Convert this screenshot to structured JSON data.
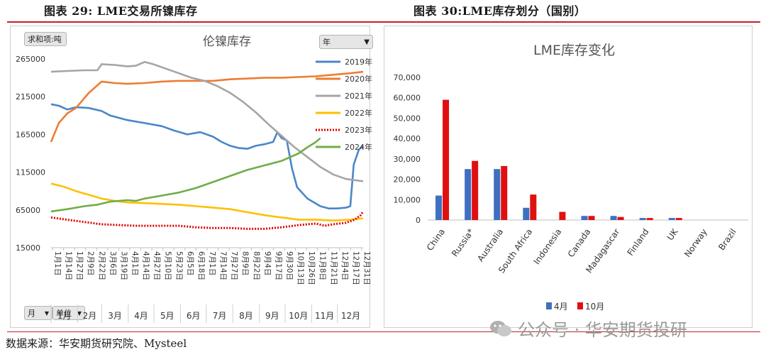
{
  "figures": {
    "left_title": "图表 29: LME交易所镍库存",
    "right_title": "图表 30:LME库存划分（国别）",
    "source": "数据来源：华安期货研究院、Mysteel",
    "watermark": "公众号 · 华安期货投研"
  },
  "controls": {
    "sum_label": "求和项:吨",
    "year_filter": "年",
    "month_filter": "月",
    "unit_filter": "单位"
  },
  "colors": {
    "y2019": "#4a86c8",
    "y2020": "#ed7d31",
    "y2021": "#a5a5a5",
    "y2022": "#ffc000",
    "y2023": "#e00000",
    "y2024": "#70ad47",
    "bar_apr": "#3f6fbf",
    "bar_oct": "#e01010"
  },
  "chart_data": [
    {
      "type": "line",
      "title": "伦镍库存",
      "ylim": [
        15000,
        265000
      ],
      "yticks": [
        15000,
        65000,
        115000,
        165000,
        215000,
        265000
      ],
      "date_labels": [
        "1月1日",
        "1月14日",
        "1月27日",
        "2月9日",
        "2月22日",
        "3月6日",
        "3月19日",
        "4月1日",
        "4月14日",
        "4月27日",
        "5月10日",
        "5月23日",
        "6月5日",
        "6月18日",
        "7月1日",
        "7月14日",
        "7月27日",
        "8月9日",
        "8月22日",
        "9月4日",
        "9月17日",
        "9月30日",
        "10月13日",
        "10月26日",
        "11月8日",
        "11月21日",
        "12月4日",
        "12月17日",
        "12月31日"
      ],
      "months": [
        "1月",
        "2月",
        "3月",
        "4月",
        "5月",
        "6月",
        "7月",
        "8月",
        "9月",
        "10月",
        "11月",
        "12月"
      ],
      "x_is_day_of_year": true,
      "series": [
        {
          "name": "2019年",
          "color": "#4a86c8",
          "dash": false,
          "points": [
            [
              1,
              205000
            ],
            [
              10,
              203000
            ],
            [
              20,
              198000
            ],
            [
              30,
              201000
            ],
            [
              45,
              200000
            ],
            [
              60,
              196000
            ],
            [
              70,
              190000
            ],
            [
              90,
              184000
            ],
            [
              110,
              180000
            ],
            [
              130,
              176000
            ],
            [
              145,
              170000
            ],
            [
              160,
              165000
            ],
            [
              175,
              168000
            ],
            [
              190,
              162000
            ],
            [
              200,
              155000
            ],
            [
              210,
              150000
            ],
            [
              220,
              147000
            ],
            [
              230,
              146000
            ],
            [
              240,
              150000
            ],
            [
              250,
              152000
            ],
            [
              260,
              155000
            ],
            [
              265,
              168000
            ],
            [
              270,
              160000
            ],
            [
              276,
              157000
            ],
            [
              282,
              120000
            ],
            [
              288,
              95000
            ],
            [
              300,
              80000
            ],
            [
              315,
              70000
            ],
            [
              325,
              67000
            ],
            [
              335,
              67000
            ],
            [
              345,
              68000
            ],
            [
              350,
              70000
            ],
            [
              354,
              125000
            ],
            [
              360,
              145000
            ],
            [
              365,
              150000
            ]
          ]
        },
        {
          "name": "2020年",
          "color": "#ed7d31",
          "dash": false,
          "points": [
            [
              1,
              155000
            ],
            [
              10,
              180000
            ],
            [
              20,
              193000
            ],
            [
              30,
              200000
            ],
            [
              45,
              220000
            ],
            [
              60,
              235000
            ],
            [
              75,
              233000
            ],
            [
              90,
              232000
            ],
            [
              110,
              233000
            ],
            [
              130,
              235000
            ],
            [
              150,
              236000
            ],
            [
              170,
              236000
            ],
            [
              190,
              236000
            ],
            [
              210,
              238000
            ],
            [
              230,
              239000
            ],
            [
              250,
              240000
            ],
            [
              270,
              240000
            ],
            [
              290,
              241000
            ],
            [
              310,
              242000
            ],
            [
              330,
              244000
            ],
            [
              350,
              246000
            ],
            [
              365,
              248000
            ]
          ]
        },
        {
          "name": "2021年",
          "color": "#a5a5a5",
          "dash": false,
          "points": [
            [
              1,
              248000
            ],
            [
              20,
              249000
            ],
            [
              40,
              250000
            ],
            [
              55,
              250000
            ],
            [
              60,
              258000
            ],
            [
              75,
              257000
            ],
            [
              90,
              255000
            ],
            [
              100,
              256000
            ],
            [
              110,
              261000
            ],
            [
              120,
              258000
            ],
            [
              135,
              252000
            ],
            [
              150,
              246000
            ],
            [
              165,
              240000
            ],
            [
              180,
              236000
            ],
            [
              195,
              229000
            ],
            [
              210,
              220000
            ],
            [
              225,
              208000
            ],
            [
              240,
              194000
            ],
            [
              255,
              178000
            ],
            [
              270,
              163000
            ],
            [
              285,
              148000
            ],
            [
              300,
              135000
            ],
            [
              315,
              122000
            ],
            [
              330,
              112000
            ],
            [
              345,
              106000
            ],
            [
              365,
              103000
            ]
          ]
        },
        {
          "name": "2022年",
          "color": "#ffc000",
          "dash": false,
          "points": [
            [
              1,
              100000
            ],
            [
              15,
              96000
            ],
            [
              30,
              90000
            ],
            [
              45,
              85000
            ],
            [
              60,
              80000
            ],
            [
              75,
              77000
            ],
            [
              90,
              75000
            ],
            [
              110,
              74000
            ],
            [
              130,
              73000
            ],
            [
              150,
              72000
            ],
            [
              170,
              70000
            ],
            [
              190,
              68000
            ],
            [
              210,
              66000
            ],
            [
              230,
              62000
            ],
            [
              250,
              58000
            ],
            [
              270,
              55000
            ],
            [
              290,
              52000
            ],
            [
              310,
              52000
            ],
            [
              330,
              51000
            ],
            [
              350,
              52000
            ],
            [
              365,
              54000
            ]
          ]
        },
        {
          "name": "2023年",
          "color": "#e00000",
          "dash": true,
          "points": [
            [
              1,
              55000
            ],
            [
              20,
              52000
            ],
            [
              40,
              49000
            ],
            [
              60,
              46000
            ],
            [
              80,
              45000
            ],
            [
              100,
              44000
            ],
            [
              120,
              44000
            ],
            [
              150,
              44000
            ],
            [
              170,
              42000
            ],
            [
              190,
              41000
            ],
            [
              210,
              41000
            ],
            [
              230,
              40000
            ],
            [
              250,
              40000
            ],
            [
              270,
              42000
            ],
            [
              290,
              45000
            ],
            [
              310,
              47000
            ],
            [
              320,
              44000
            ],
            [
              330,
              46000
            ],
            [
              345,
              48000
            ],
            [
              355,
              52000
            ],
            [
              362,
              58000
            ],
            [
              365,
              63000
            ]
          ]
        },
        {
          "name": "2024年",
          "color": "#70ad47",
          "dash": false,
          "points": [
            [
              1,
              63000
            ],
            [
              20,
              66000
            ],
            [
              40,
              70000
            ],
            [
              55,
              72000
            ],
            [
              70,
              76000
            ],
            [
              90,
              78000
            ],
            [
              100,
              77000
            ],
            [
              110,
              80000
            ],
            [
              130,
              84000
            ],
            [
              150,
              88000
            ],
            [
              170,
              94000
            ],
            [
              190,
              102000
            ],
            [
              210,
              110000
            ],
            [
              230,
              118000
            ],
            [
              250,
              124000
            ],
            [
              270,
              130000
            ],
            [
              280,
              135000
            ],
            [
              290,
              140000
            ],
            [
              300,
              148000
            ],
            [
              310,
              155000
            ],
            [
              315,
              160000
            ]
          ]
        }
      ]
    },
    {
      "type": "bar",
      "title": "LME库存变化",
      "ylim": [
        0,
        70000
      ],
      "yticks": [
        "0",
        "10,000",
        "20,000",
        "30,000",
        "40,000",
        "50,000",
        "60,000",
        "70,000"
      ],
      "categories": [
        "China",
        "Russia*",
        "Australia",
        "South Africa",
        "Indonesia",
        "Canada",
        "Madagascar",
        "Finland",
        "UK",
        "Norway",
        "Brazil"
      ],
      "series": [
        {
          "name": "4月",
          "color": "#3f6fbf",
          "values": [
            12000,
            25000,
            25000,
            6000,
            0,
            2000,
            2000,
            1000,
            1000,
            0,
            0
          ]
        },
        {
          "name": "10月",
          "color": "#e01010",
          "values": [
            59000,
            29000,
            26500,
            12500,
            4000,
            2000,
            1500,
            1000,
            1000,
            0,
            0
          ]
        }
      ],
      "legend_position": "bottom"
    }
  ]
}
